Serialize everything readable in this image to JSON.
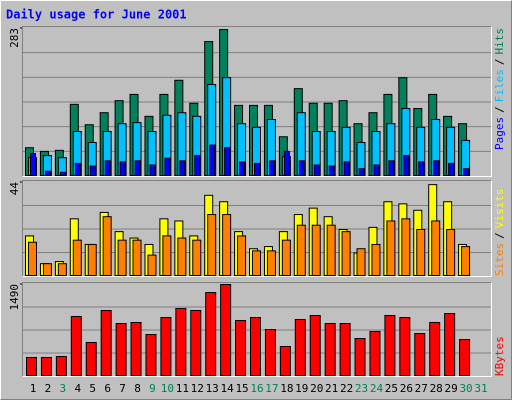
{
  "chart_data": [
    {
      "type": "bar",
      "title": "Daily usage for June 2001",
      "title_color": "#0000ff",
      "legend_separator": "/",
      "ylim": [
        0,
        283
      ],
      "yticks": [
        283
      ],
      "series": [
        {
          "name": "Hits",
          "color": "#00805c",
          "values": [
            55,
            48,
            50,
            138,
            99,
            122,
            145,
            157,
            115,
            157,
            184,
            140,
            258,
            281,
            136,
            136,
            136,
            76,
            168,
            140,
            140,
            145,
            101,
            122,
            157,
            189,
            130,
            157,
            115,
            101,
            0
          ]
        },
        {
          "name": "Files",
          "color": "#00c0ff",
          "values": [
            36,
            40,
            36,
            86,
            65,
            86,
            101,
            103,
            86,
            117,
            122,
            115,
            176,
            189,
            101,
            94,
            109,
            38,
            122,
            86,
            86,
            94,
            65,
            86,
            101,
            130,
            94,
            109,
            94,
            69,
            0
          ]
        },
        {
          "name": "Pages",
          "color": "#0000ff",
          "values": [
            44,
            10,
            8,
            25,
            20,
            30,
            28,
            30,
            22,
            35,
            30,
            40,
            60,
            55,
            28,
            25,
            30,
            48,
            30,
            22,
            20,
            28,
            15,
            22,
            30,
            40,
            28,
            30,
            25,
            15,
            0
          ]
        }
      ]
    },
    {
      "type": "bar",
      "legend_separator": "/",
      "ylim": [
        0,
        44
      ],
      "yticks": [
        44
      ],
      "series": [
        {
          "name": "Visits",
          "color": "#ffff00",
          "values": [
            19,
            6,
            7,
            27,
            15,
            30,
            21,
            18,
            15,
            27,
            26,
            19,
            38,
            35,
            21,
            13,
            14,
            21,
            29,
            32,
            28,
            22,
            11,
            23,
            35,
            34,
            31,
            43,
            35,
            15,
            0
          ]
        },
        {
          "name": "Sites",
          "color": "#ff8000",
          "values": [
            16,
            6,
            6,
            17,
            15,
            28,
            17,
            17,
            10,
            19,
            18,
            17,
            29,
            29,
            19,
            12,
            12,
            17,
            24,
            24,
            24,
            21,
            13,
            15,
            26,
            27,
            22,
            26,
            22,
            14,
            0
          ]
        }
      ]
    },
    {
      "type": "bar",
      "ylim": [
        0,
        1490
      ],
      "yticks": [
        1490
      ],
      "categories": [
        "1",
        "2",
        "3",
        "4",
        "5",
        "6",
        "7",
        "8",
        "9",
        "10",
        "11",
        "12",
        "13",
        "14",
        "15",
        "16",
        "17",
        "18",
        "19",
        "20",
        "21",
        "22",
        "23",
        "24",
        "25",
        "26",
        "27",
        "28",
        "29",
        "30",
        "31"
      ],
      "category_colors": [
        "#000000",
        "#000000",
        "#00805c",
        "#000000",
        "#000000",
        "#000000",
        "#000000",
        "#000000",
        "#00805c",
        "#00805c",
        "#000000",
        "#000000",
        "#000000",
        "#000000",
        "#000000",
        "#00805c",
        "#00805c",
        "#000000",
        "#000000",
        "#000000",
        "#000000",
        "#000000",
        "#00805c",
        "#00805c",
        "#000000",
        "#000000",
        "#000000",
        "#000000",
        "#000000",
        "#00805c",
        "#00805c"
      ],
      "series": [
        {
          "name": "KBytes",
          "color": "#ff0000",
          "values": [
            308,
            308,
            324,
            972,
            551,
            1069,
            858,
            875,
            680,
            955,
            1101,
            1069,
            1360,
            1490,
            907,
            955,
            761,
            486,
            923,
            988,
            858,
            858,
            615,
            729,
            988,
            955,
            696,
            875,
            1020,
            599,
            0
          ]
        }
      ]
    }
  ]
}
